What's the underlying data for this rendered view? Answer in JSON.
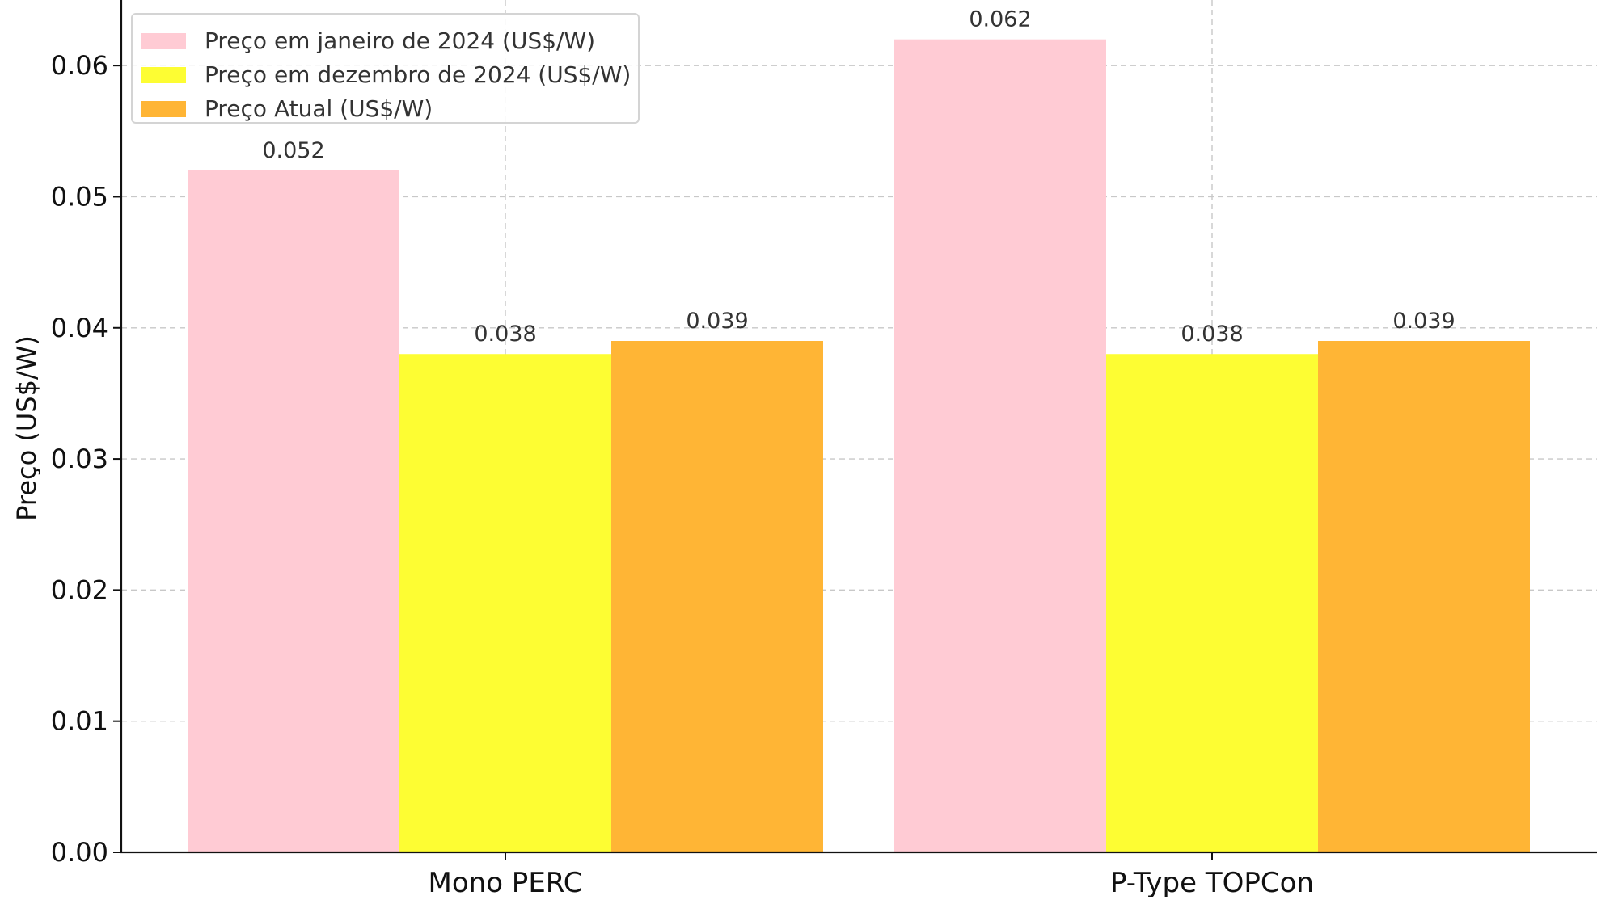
{
  "chart_data": {
    "type": "bar",
    "title": "",
    "xlabel": "",
    "ylabel": "Preço (US$/W)",
    "categories": [
      "Mono PERC",
      "P-Type TOPCon"
    ],
    "series": [
      {
        "name": "Preço em janeiro de 2024 (US$/W)",
        "values": [
          0.052,
          0.062
        ],
        "color": "#ffcbd4"
      },
      {
        "name": "Preço em dezembro de 2024 (US$/W)",
        "values": [
          0.038,
          0.038
        ],
        "color": "#fdfd33"
      },
      {
        "name": "Preço Atual (US$/W)",
        "values": [
          0.039,
          0.039
        ],
        "color": "#ffb535"
      }
    ],
    "data_labels": [
      [
        "0.052",
        "0.062"
      ],
      [
        "0.038",
        "0.038"
      ],
      [
        "0.039",
        "0.039"
      ]
    ],
    "ylim": [
      0,
      0.065
    ],
    "yticks": [
      0.0,
      0.01,
      0.02,
      0.03,
      0.04,
      0.05,
      0.06
    ],
    "ytick_labels": [
      "0.00",
      "0.01",
      "0.02",
      "0.03",
      "0.04",
      "0.05",
      "0.06"
    ],
    "grid": true,
    "legend_position": "top-left"
  }
}
